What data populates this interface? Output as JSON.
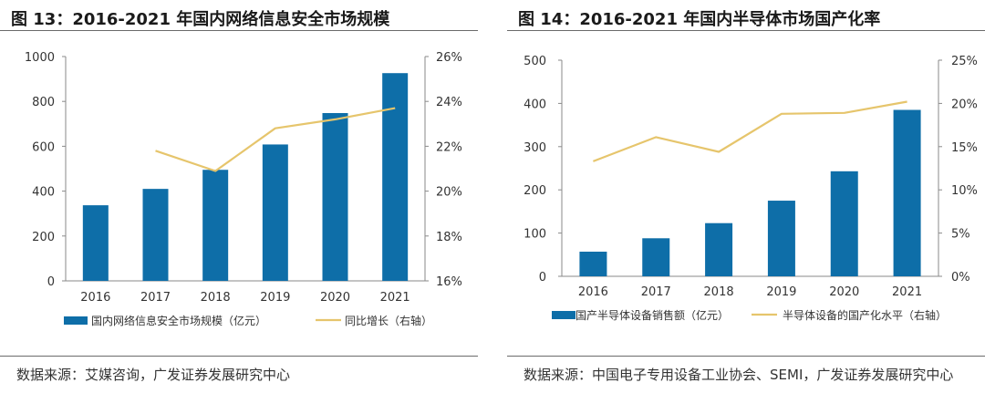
{
  "charts": [
    {
      "title": "图 13：2016-2021 年国内网络信息安全市场规模",
      "source": "数据来源：艾媒咨询，广发证券发展研究中心",
      "legend": {
        "bar": "国内网络信息安全市场规模（亿元）",
        "line": "同比增长（右轴）"
      }
    },
    {
      "title": "图 14：2016-2021 年国内半导体市场国产化率",
      "source": "数据来源：中国电子专用设备工业协会、SEMI，广发证券发展研究中心",
      "legend": {
        "bar": "国产半导体设备销售额（亿元）",
        "line": "半导体设备的国产化水平（右轴）"
      }
    }
  ],
  "chart_data": [
    {
      "type": "bar",
      "title": "2016-2021 年国内网络信息安全市场规模",
      "categories": [
        "2016",
        "2017",
        "2018",
        "2019",
        "2020",
        "2021"
      ],
      "series": [
        {
          "name": "国内网络信息安全市场规模（亿元）",
          "type": "bar",
          "axis": "left",
          "values": [
            337,
            410,
            495,
            608,
            748,
            926
          ]
        },
        {
          "name": "同比增长（右轴）",
          "type": "line",
          "axis": "right",
          "values": [
            null,
            21.8,
            20.9,
            22.8,
            23.2,
            23.7
          ]
        }
      ],
      "ylim": [
        0,
        1000
      ],
      "yticks": [
        0,
        200,
        400,
        600,
        800,
        1000
      ],
      "y2lim": [
        16,
        26
      ],
      "y2ticks": [
        "16%",
        "18%",
        "20%",
        "22%",
        "24%",
        "26%"
      ],
      "colors": {
        "bar": "#0e6ea8",
        "line": "#e6c56c"
      }
    },
    {
      "type": "bar",
      "title": "2016-2021 年国内半导体市场国产化率",
      "categories": [
        "2016",
        "2017",
        "2018",
        "2019",
        "2020",
        "2021"
      ],
      "series": [
        {
          "name": "国产半导体设备销售额（亿元）",
          "type": "bar",
          "axis": "left",
          "values": [
            57,
            88,
            123,
            175,
            243,
            385
          ]
        },
        {
          "name": "半导体设备的国产化水平（右轴）",
          "type": "line",
          "axis": "right",
          "values": [
            13.3,
            16.1,
            14.4,
            18.8,
            18.9,
            20.2
          ]
        }
      ],
      "ylim": [
        0,
        500
      ],
      "yticks": [
        0,
        100,
        200,
        300,
        400,
        500
      ],
      "y2lim": [
        0,
        25
      ],
      "y2ticks": [
        "0%",
        "5%",
        "10%",
        "15%",
        "20%",
        "25%"
      ],
      "colors": {
        "bar": "#0e6ea8",
        "line": "#e6c56c"
      }
    }
  ]
}
